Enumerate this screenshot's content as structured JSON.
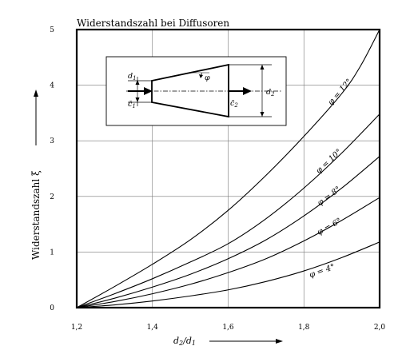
{
  "chart_data": {
    "type": "line",
    "title": "Widerstandszahl bei Diffusoren",
    "xlabel": "d2/d1",
    "ylabel": "Widerstandszahl ξ",
    "xlim": [
      1.2,
      2.0
    ],
    "ylim": [
      0,
      5
    ],
    "x_ticks": [
      "1,2",
      "1,4",
      "1,6",
      "1,8",
      "2,0"
    ],
    "y_ticks": [
      "0",
      "1",
      "2",
      "3",
      "4",
      "5"
    ],
    "grid": true,
    "series": [
      {
        "name": "φ = 12°",
        "x": [
          1.2,
          1.3,
          1.4,
          1.5,
          1.6,
          1.7,
          1.8,
          1.9,
          1.95,
          2.0
        ],
        "y": [
          0,
          0.38,
          0.78,
          1.22,
          1.75,
          2.38,
          3.08,
          3.85,
          4.35,
          5.0
        ]
      },
      {
        "name": "φ = 10°",
        "x": [
          1.2,
          1.3,
          1.4,
          1.5,
          1.6,
          1.7,
          1.8,
          1.9,
          2.0
        ],
        "y": [
          0,
          0.25,
          0.52,
          0.82,
          1.15,
          1.6,
          2.15,
          2.78,
          3.48
        ]
      },
      {
        "name": "φ = 8°",
        "x": [
          1.2,
          1.3,
          1.4,
          1.5,
          1.6,
          1.7,
          1.8,
          1.9,
          2.0
        ],
        "y": [
          0,
          0.17,
          0.37,
          0.6,
          0.88,
          1.22,
          1.65,
          2.15,
          2.72
        ]
      },
      {
        "name": "φ = 6°",
        "x": [
          1.2,
          1.3,
          1.4,
          1.5,
          1.6,
          1.7,
          1.8,
          1.9,
          2.0
        ],
        "y": [
          0,
          0.11,
          0.25,
          0.42,
          0.63,
          0.88,
          1.2,
          1.57,
          1.98
        ]
      },
      {
        "name": "φ = 4°",
        "x": [
          1.2,
          1.3,
          1.4,
          1.5,
          1.6,
          1.7,
          1.8,
          1.9,
          2.0
        ],
        "y": [
          0,
          0.05,
          0.12,
          0.21,
          0.32,
          0.47,
          0.66,
          0.9,
          1.18
        ]
      }
    ],
    "inset": {
      "labels": {
        "d1": "d1",
        "c1": "c1",
        "c2": "c2",
        "d2": "d2",
        "phi": "φ"
      }
    }
  }
}
